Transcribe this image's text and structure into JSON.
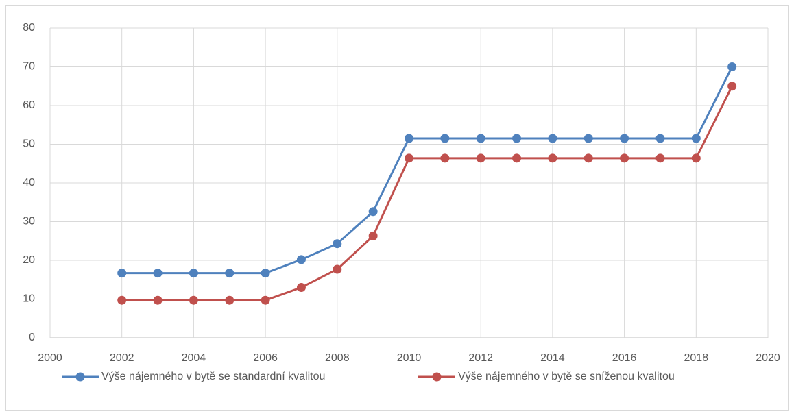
{
  "chart_data": {
    "type": "line",
    "x": [
      2002,
      2003,
      2004,
      2005,
      2006,
      2007,
      2008,
      2009,
      2010,
      2011,
      2012,
      2013,
      2014,
      2015,
      2016,
      2017,
      2018,
      2019
    ],
    "series": [
      {
        "name": "Výše nájemného v bytě se standardní kvalitou",
        "color": "#4f81bd",
        "values": [
          16.7,
          16.7,
          16.7,
          16.7,
          16.7,
          20.2,
          24.3,
          32.6,
          51.5,
          51.5,
          51.5,
          51.5,
          51.5,
          51.5,
          51.5,
          51.5,
          51.5,
          70
        ]
      },
      {
        "name": "Výše nájemného v bytě se sníženou kvalitou",
        "color": "#c0504d",
        "values": [
          9.7,
          9.7,
          9.7,
          9.7,
          9.7,
          13.0,
          17.7,
          26.3,
          46.4,
          46.4,
          46.4,
          46.4,
          46.4,
          46.4,
          46.4,
          46.4,
          46.4,
          65
        ]
      }
    ],
    "xlim": [
      2000,
      2020
    ],
    "xticks": [
      2000,
      2002,
      2004,
      2006,
      2008,
      2010,
      2012,
      2014,
      2016,
      2018,
      2020
    ],
    "ylim": [
      0,
      80
    ],
    "yticks": [
      0,
      10,
      20,
      30,
      40,
      50,
      60,
      70,
      80
    ],
    "grid": true,
    "legend": "bottom"
  }
}
